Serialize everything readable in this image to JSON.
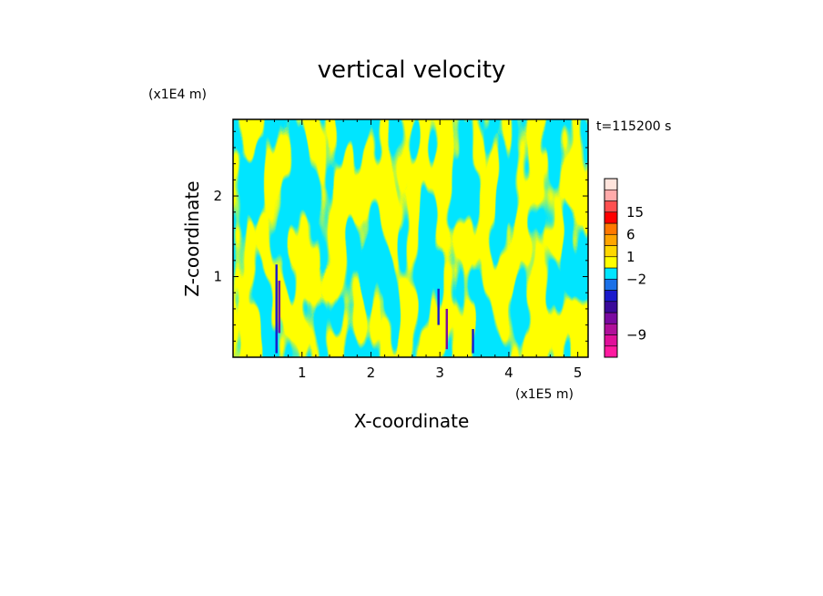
{
  "chart_data": {
    "type": "heatmap",
    "title": "vertical velocity",
    "xlabel": "X-coordinate",
    "ylabel": "Z-coordinate",
    "x_unit": "(x1E5 m)",
    "y_unit": "(x1E4 m)",
    "time_label": "t=115200 s",
    "xlim": [
      0,
      5.15
    ],
    "ylim": [
      0,
      2.95
    ],
    "x_ticks": [
      1,
      2,
      3,
      4,
      5
    ],
    "y_ticks": [
      1,
      2
    ],
    "colorbar": {
      "tick_values": [
        15,
        6,
        1,
        -2,
        -9
      ],
      "tick_labels": [
        "15",
        "6",
        "1",
        "−2",
        "−9"
      ],
      "levels": [
        {
          "color": "#ff1aa0"
        },
        {
          "color": "#e0109a"
        },
        {
          "color": "#b0109a"
        },
        {
          "color": "#7a0aa0"
        },
        {
          "color": "#3a0a9a"
        },
        {
          "color": "#1a1acc"
        },
        {
          "color": "#1a70e8"
        },
        {
          "color": "#00e5ff"
        },
        {
          "color": "#ffff00"
        },
        {
          "color": "#ffd700"
        },
        {
          "color": "#ffa500"
        },
        {
          "color": "#ff7800"
        },
        {
          "color": "#ff0000"
        },
        {
          "color": "#ff5050"
        },
        {
          "color": "#ffaaaa"
        },
        {
          "color": "#ffe4dc"
        }
      ]
    },
    "field_colors": {
      "positive": "#ffff00",
      "negative": "#00e5ff",
      "strong_updraft": "#1a1acc",
      "strong_downdraft": "#7a0aa0"
    },
    "strong_cores": [
      {
        "x": 0.63,
        "z_min": 0.05,
        "z_max": 1.15
      },
      {
        "x": 0.67,
        "z_min": 0.3,
        "z_max": 0.95
      },
      {
        "x": 2.98,
        "z_min": 0.4,
        "z_max": 0.85
      },
      {
        "x": 3.1,
        "z_min": 0.1,
        "z_max": 0.6
      },
      {
        "x": 3.48,
        "z_min": 0.05,
        "z_max": 0.35
      }
    ]
  }
}
